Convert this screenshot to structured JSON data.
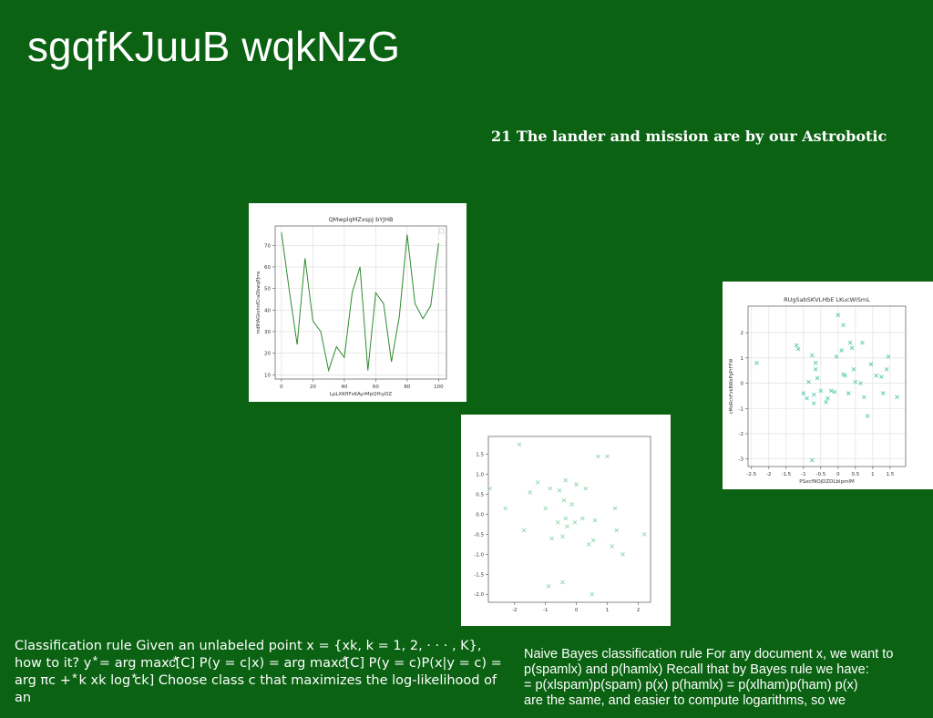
{
  "slide": {
    "title": "sgqfKJuuB wqkNzG",
    "subtitle": "21 The lander and mission are by our Astrobotic",
    "left_text": "Classification rule Given an unlabeled point x = {xk, k = 1, 2, · · · , K}, how to it? y ⃰ = arg maxc⃰[C] P(y = c|x) = arg maxc⃰[C] P(y = c)P(x|y = c) = arg πc + ⃰ k xk log ⃰ck] Choose class c that maximizes the log-likelihood of an",
    "right_lines": [
      "Naive Bayes classification rule For any document x, we want to",
      "p(spamlx) and p(hamlx) Recall that by Bayes rule we have:",
      "= p(xlspam)p(spam) p(x) p(hamlx) = p(xlham)p(ham) p(x)",
      "are the same, and easier to compute logarithms, so we"
    ]
  },
  "chart_data": [
    {
      "type": "line",
      "title": "QMwplqMZxspJ bYJHB",
      "xlabel": "LpLXKfIFsKAyrMpQfhyDZ",
      "ylabel": "mdIHAGkshnfCraDbwqPJms",
      "xlim": [
        -4,
        105
      ],
      "ylim": [
        8,
        79
      ],
      "xticks": [
        0,
        20,
        40,
        60,
        80,
        100
      ],
      "yticks": [
        10,
        20,
        30,
        40,
        50,
        60,
        70
      ],
      "grid": true,
      "legend": "top-right",
      "color": "#2e8b2e",
      "x": [
        0,
        5,
        10,
        15,
        20,
        25,
        30,
        35,
        40,
        45,
        50,
        55,
        60,
        65,
        70,
        75,
        80,
        85,
        90,
        95,
        100
      ],
      "y": [
        76,
        49,
        24,
        64,
        35,
        30,
        12,
        23,
        18,
        48,
        60,
        12,
        48,
        43,
        16,
        37,
        75,
        43,
        36,
        42,
        71
      ]
    },
    {
      "type": "scatter",
      "title": "",
      "xlabel": "",
      "ylabel": "",
      "xlim": [
        -2.85,
        2.4
      ],
      "ylim": [
        -2.2,
        1.95
      ],
      "xticks": [
        -2,
        -1,
        0,
        1,
        2
      ],
      "yticks": [
        -2.0,
        -1.5,
        -1.0,
        -0.5,
        0.0,
        0.5,
        1.0,
        1.5
      ],
      "grid": false,
      "marker": "x",
      "color": "#8ed8a8",
      "points": [
        [
          -2.8,
          0.65
        ],
        [
          -2.3,
          0.15
        ],
        [
          -1.85,
          1.75
        ],
        [
          -1.7,
          -0.4
        ],
        [
          -1.5,
          0.55
        ],
        [
          -1.25,
          0.8
        ],
        [
          -1.0,
          0.15
        ],
        [
          -0.8,
          -0.6
        ],
        [
          -0.85,
          0.65
        ],
        [
          -0.55,
          0.6
        ],
        [
          -0.35,
          0.85
        ],
        [
          -0.4,
          0.35
        ],
        [
          -0.15,
          0.25
        ],
        [
          -0.35,
          -0.1
        ],
        [
          -0.6,
          -0.2
        ],
        [
          -0.45,
          -0.55
        ],
        [
          -0.3,
          -0.3
        ],
        [
          -0.05,
          -0.2
        ],
        [
          0.0,
          0.75
        ],
        [
          0.3,
          0.65
        ],
        [
          0.2,
          -0.1
        ],
        [
          0.4,
          -0.75
        ],
        [
          0.55,
          -0.65
        ],
        [
          0.6,
          -0.15
        ],
        [
          0.7,
          1.45
        ],
        [
          1.0,
          1.45
        ],
        [
          1.15,
          -0.8
        ],
        [
          1.25,
          0.15
        ],
        [
          1.3,
          -0.4
        ],
        [
          1.5,
          -1.0
        ],
        [
          -0.9,
          -1.8
        ],
        [
          -0.45,
          -1.7
        ],
        [
          0.5,
          -2.0
        ],
        [
          2.2,
          -0.5
        ]
      ]
    },
    {
      "type": "scatter",
      "title": "RUgSabSKVLHbE LKucWiSmL",
      "xlabel": "PSxcfNOjDZDLblpmIM",
      "ylabel": "cMoRchFzkBWoPgPrFFW",
      "xlim": [
        -2.6,
        1.95
      ],
      "ylim": [
        -3.3,
        3.05
      ],
      "xticks": [
        -2.5,
        -2.0,
        -1.5,
        -1.0,
        -0.5,
        0.0,
        0.5,
        1.0,
        1.5
      ],
      "yticks": [
        -3,
        -2,
        -1,
        0,
        1,
        2
      ],
      "grid": true,
      "marker": "x",
      "color": "#5ac8b0",
      "points": [
        [
          -2.35,
          0.8
        ],
        [
          -1.2,
          1.5
        ],
        [
          -1.15,
          1.35
        ],
        [
          -1.0,
          -0.4
        ],
        [
          -0.9,
          -0.6
        ],
        [
          -0.85,
          0.05
        ],
        [
          -0.7,
          -0.8
        ],
        [
          -0.7,
          -0.45
        ],
        [
          -0.6,
          0.2
        ],
        [
          -0.65,
          0.55
        ],
        [
          -0.65,
          0.8
        ],
        [
          -0.75,
          1.1
        ],
        [
          -0.5,
          -0.3
        ],
        [
          -0.35,
          -0.75
        ],
        [
          -0.3,
          -0.6
        ],
        [
          -0.2,
          -0.3
        ],
        [
          -0.1,
          -0.35
        ],
        [
          -0.05,
          1.05
        ],
        [
          0.0,
          2.7
        ],
        [
          0.15,
          2.3
        ],
        [
          0.15,
          0.35
        ],
        [
          0.2,
          0.3
        ],
        [
          0.3,
          -0.4
        ],
        [
          0.35,
          1.6
        ],
        [
          0.4,
          1.4
        ],
        [
          0.45,
          0.55
        ],
        [
          0.5,
          0.05
        ],
        [
          0.65,
          0.0
        ],
        [
          0.7,
          1.6
        ],
        [
          0.75,
          -0.55
        ],
        [
          0.85,
          -1.3
        ],
        [
          0.95,
          0.75
        ],
        [
          1.1,
          0.3
        ],
        [
          1.25,
          0.25
        ],
        [
          1.3,
          -0.4
        ],
        [
          1.4,
          0.55
        ],
        [
          1.45,
          1.05
        ],
        [
          1.7,
          -0.55
        ],
        [
          0.1,
          1.3
        ],
        [
          -0.75,
          -3.05
        ]
      ]
    }
  ]
}
